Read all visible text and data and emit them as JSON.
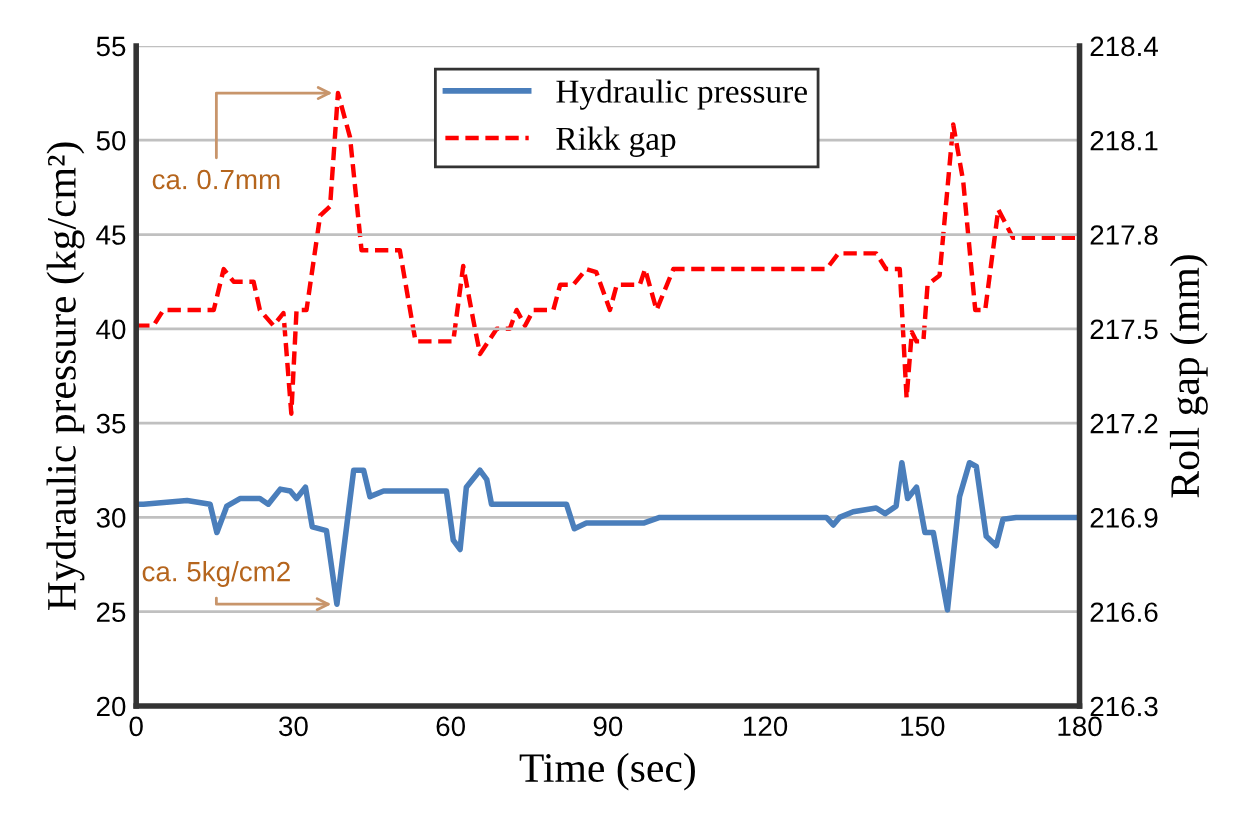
{
  "chart_data": {
    "type": "line",
    "xlabel": "Time (sec)",
    "ylabel": "Hydraulic pressure (kg/cm²)",
    "y2label": "Roll gap (mm)",
    "xlim": [
      0,
      180
    ],
    "xticks": [
      0,
      30,
      60,
      90,
      120,
      150,
      180
    ],
    "ylim": [
      20,
      55
    ],
    "yticks": [
      20,
      25,
      30,
      35,
      40,
      45,
      50,
      55
    ],
    "y2lim": [
      216.3,
      218.4
    ],
    "y2ticks": [
      216.3,
      216.6,
      216.9,
      217.2,
      217.5,
      217.8,
      218.1,
      218.4
    ],
    "grid": "y",
    "legend": "top",
    "marker": "none",
    "series": [
      {
        "name": "Hydraulic pressure",
        "color": "#4a7ebb",
        "line_style": "solid",
        "x": [
          0,
          1.4,
          9.7,
          14.1,
          15.4,
          17.3,
          19.8,
          23.6,
          25.2,
          27.5,
          29.4,
          30.6,
          32.3,
          33.6,
          36.3,
          38.3,
          41.5,
          43.4,
          44.6,
          47.2,
          59.2,
          60.5,
          61.8,
          63.0,
          65.6,
          66.9,
          67.8,
          82.1,
          83.6,
          85.9,
          96.8,
          99.9,
          131.7,
          133.0,
          134.2,
          136.8,
          141.2,
          142.9,
          145.0,
          146.1,
          147.2,
          148.9,
          150.5,
          152.1,
          154.8,
          157.1,
          159.0,
          160.3,
          162.2,
          164.1,
          165.4,
          167.9,
          180
        ],
        "values": [
          30.7,
          30.7,
          30.9,
          30.7,
          29.2,
          30.6,
          31.0,
          31.0,
          30.7,
          31.5,
          31.4,
          31.0,
          31.6,
          29.5,
          29.3,
          25.4,
          32.5,
          32.5,
          31.1,
          31.4,
          31.4,
          28.8,
          28.3,
          31.6,
          32.5,
          32.0,
          30.7,
          30.7,
          29.4,
          29.7,
          29.7,
          30.0,
          30.0,
          29.6,
          30.0,
          30.3,
          30.5,
          30.2,
          30.6,
          32.9,
          31.0,
          31.6,
          29.2,
          29.2,
          25.1,
          31.1,
          32.9,
          32.7,
          29.0,
          28.5,
          29.9,
          30.0,
          30.0
        ]
      },
      {
        "name": "Rikk gap",
        "color": "#ff0000",
        "line_style": "dashed",
        "axis": "y2",
        "x": [
          0,
          3.3,
          5.2,
          14.8,
          16.7,
          18.6,
          22.4,
          23.6,
          26.2,
          28.1,
          29.6,
          30.6,
          32.5,
          35.1,
          37.0,
          38.5,
          40.8,
          43.0,
          50.3,
          53.3,
          60.5,
          62.4,
          64.3,
          65.6,
          68.8,
          71.3,
          72.6,
          74.2,
          75.8,
          79.6,
          80.9,
          83.4,
          85.9,
          87.8,
          90.4,
          91.7,
          96.1,
          97.1,
          99.3,
          102.5,
          131.7,
          134.0,
          141.2,
          143.1,
          145.7,
          147.0,
          148.0,
          148.9,
          150.2,
          151.0,
          153.3,
          155.9,
          157.8,
          160.1,
          162.0,
          164.5,
          167.3,
          180
        ],
        "values": [
          217.51,
          217.51,
          217.56,
          217.56,
          217.69,
          217.65,
          217.65,
          217.56,
          217.51,
          217.55,
          217.23,
          217.56,
          217.56,
          217.86,
          217.89,
          218.25,
          218.11,
          217.75,
          217.75,
          217.46,
          217.46,
          217.7,
          217.53,
          217.42,
          217.5,
          217.5,
          217.56,
          217.51,
          217.56,
          217.56,
          217.64,
          217.64,
          217.69,
          217.68,
          217.56,
          217.64,
          217.64,
          217.69,
          217.56,
          217.69,
          217.69,
          217.74,
          217.74,
          217.69,
          217.69,
          217.28,
          217.49,
          217.46,
          217.46,
          217.64,
          217.67,
          218.15,
          217.97,
          217.56,
          217.56,
          217.88,
          217.79,
          217.79
        ]
      }
    ],
    "annotations": [
      {
        "text": "ca. 0.7mm",
        "x": 38.5,
        "y": 52.5
      },
      {
        "text": "ca. 5kg/cm2",
        "x": 38.3,
        "y": 25.4
      }
    ]
  }
}
